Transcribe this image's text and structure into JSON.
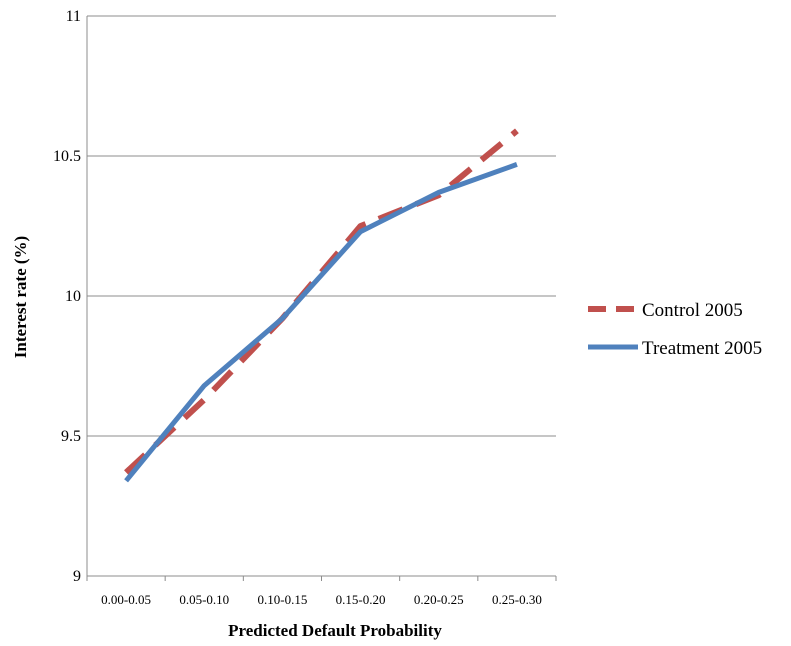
{
  "chart_data": {
    "type": "line",
    "title": "",
    "xlabel": "Predicted Default Probability",
    "ylabel": "Interest rate (%)",
    "categories": [
      "0.00-0.05",
      "0.05-0.10",
      "0.10-0.15",
      "0.15-0.20",
      "0.20-0.25",
      "0.25-0.30"
    ],
    "ylim": [
      9,
      11
    ],
    "yticks": [
      "9",
      "9.5",
      "10",
      "10.5",
      "11"
    ],
    "grid": "horizontal",
    "legend_position": "right",
    "series": [
      {
        "name": "Control 2005",
        "values": [
          9.37,
          9.63,
          9.92,
          10.25,
          10.36,
          10.59
        ],
        "color": "#c0504d",
        "style": "dashed"
      },
      {
        "name": "Treatment 2005",
        "values": [
          9.34,
          9.68,
          9.92,
          10.23,
          10.37,
          10.47
        ],
        "color": "#4f81bd",
        "style": "solid"
      }
    ]
  }
}
